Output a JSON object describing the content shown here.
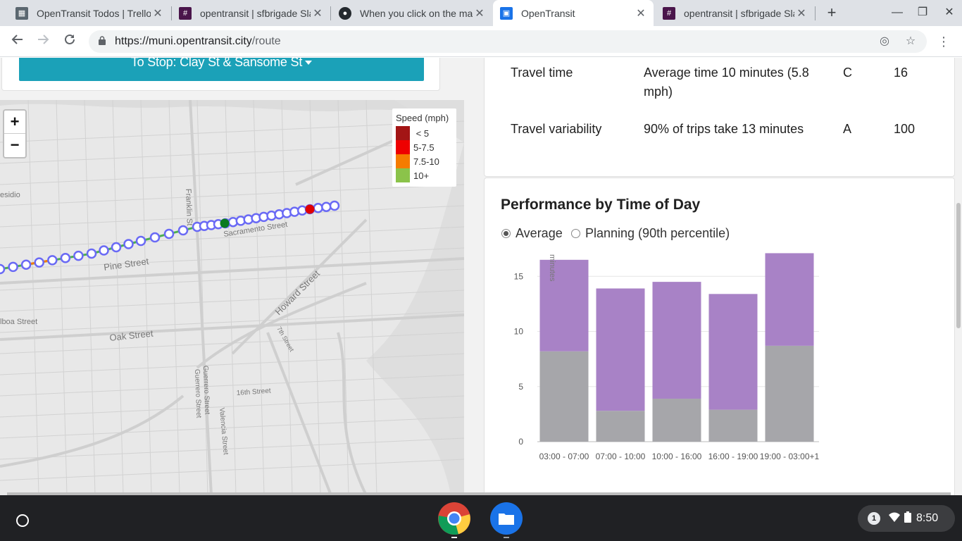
{
  "browser": {
    "tabs": [
      {
        "title": "OpenTransit Todos | Trello",
        "icon": "trello-icon",
        "color": "#5b6770"
      },
      {
        "title": "opentransit | sfbrigade Slack",
        "icon": "slack-icon",
        "color": "#4a154b"
      },
      {
        "title": "When you click on the map",
        "icon": "github-icon",
        "color": "#24292e"
      },
      {
        "title": "OpenTransit",
        "icon": "bus-icon",
        "color": "#1a73e8"
      },
      {
        "title": "opentransit | sfbrigade Slack",
        "icon": "slack-icon",
        "color": "#4a154b"
      }
    ],
    "active_tab": 3,
    "url_host": "https://muni.opentransit.city",
    "url_path": "/route"
  },
  "route": {
    "to_stop_label": "To Stop: Clay St & Sansome St"
  },
  "map": {
    "zoom_in": "+",
    "zoom_out": "−",
    "labels": {
      "presidio": "esidio",
      "franklin": "Franklin St",
      "sacramento": "Sacramento Street",
      "pine": "Pine Street",
      "howard": "Howard Street",
      "seventh": "7th Street",
      "balboa": "lboa Street",
      "oak": "Oak Street",
      "guerrero1": "Guerrero Street",
      "guerrero2": "Guerrero Street",
      "sixteenth": "16th Street",
      "valencia": "Valencia Street"
    },
    "legend": {
      "title": "Speed (mph)",
      "items": [
        {
          "label": " < 5",
          "color": "#a31515"
        },
        {
          "label": "5-7.5",
          "color": "#ee0000"
        },
        {
          "label": "7.5-10",
          "color": "#f57c00"
        },
        {
          "label": "10+",
          "color": "#8bc34a"
        }
      ]
    }
  },
  "metrics": [
    {
      "name": "Travel time",
      "value_line1": "Average time 10 minutes (5.8",
      "value_line2": "mph)",
      "grade": "C",
      "score": "16"
    },
    {
      "name": "Travel variability",
      "value_line1": "90% of trips take 13 minutes",
      "value_line2": "",
      "grade": "A",
      "score": "100"
    }
  ],
  "performance": {
    "title": "Performance by Time of Day",
    "options": [
      {
        "label": "Average",
        "selected": true
      },
      {
        "label": "Planning (90th percentile)",
        "selected": false
      }
    ]
  },
  "chart_data": {
    "type": "bar",
    "stacked": true,
    "ylabel": "minutes",
    "ylim": [
      0,
      17
    ],
    "yticks": [
      0,
      5,
      10,
      15
    ],
    "categories": [
      "03:00 - 07:00",
      "07:00 - 10:00",
      "10:00 - 16:00",
      "16:00 - 19:00",
      "19:00 - 03:00+1"
    ],
    "series": [
      {
        "values": [
          8.2,
          2.8,
          3.9,
          2.9,
          8.7
        ],
        "color": "#a6a6aa"
      },
      {
        "values": [
          8.3,
          11.1,
          10.6,
          10.5,
          8.4
        ],
        "color": "#a882c6"
      }
    ],
    "grid": true
  },
  "shelf": {
    "notification_count": "1",
    "time": "8:50"
  }
}
